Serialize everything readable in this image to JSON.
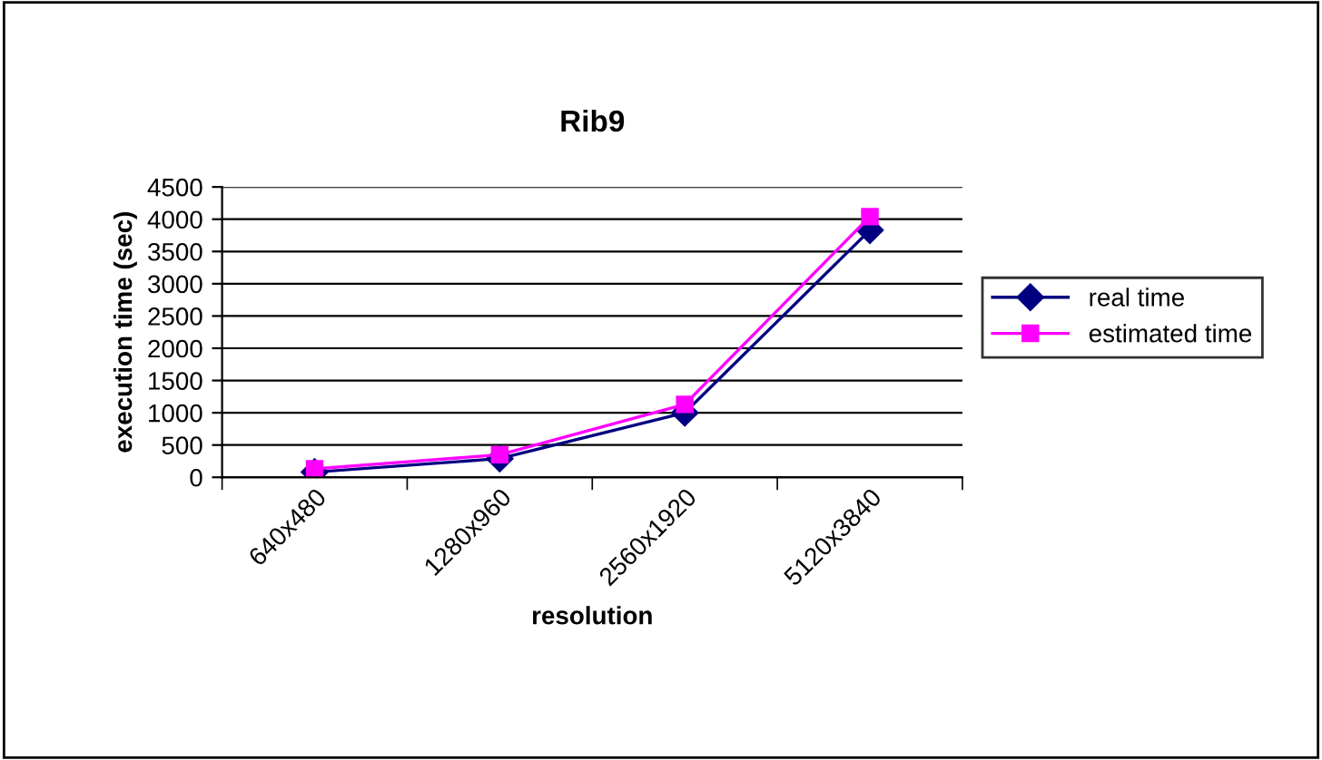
{
  "chart_data": {
    "type": "line",
    "title": "Rib9",
    "xlabel": "resolution",
    "ylabel": "execution time (sec)",
    "categories": [
      "640x480",
      "1280x960",
      "2560x1920",
      "5120x3840"
    ],
    "series": [
      {
        "name": "real time",
        "color": "#000080",
        "values": [
          80,
          290,
          1000,
          3830
        ],
        "marker": "diamond"
      },
      {
        "name": "estimated time",
        "color": "#ff00ff",
        "values": [
          130,
          350,
          1130,
          4040
        ],
        "marker": "square"
      }
    ],
    "ylim": [
      0,
      4500
    ],
    "yticks": [
      0,
      500,
      1000,
      1500,
      2000,
      2500,
      3000,
      3500,
      4000,
      4500
    ],
    "grid": "y",
    "legend": "right",
    "line_style": "solid"
  }
}
